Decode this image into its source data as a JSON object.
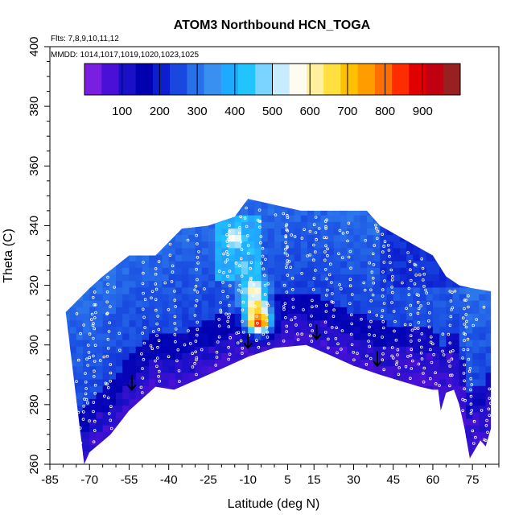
{
  "chart_data": {
    "type": "heatmap",
    "title": "ATOM3 Northbound HCN_TOGA",
    "annotations": [
      "Flts: 7,8,9,10,11,12",
      "MMDD: 1014,1017,1019,1020,1023,1025"
    ],
    "xlabel": "Latitude (deg N)",
    "ylabel": "Theta (C)",
    "xlim": [
      -85,
      85
    ],
    "ylim": [
      260,
      400
    ],
    "x_ticks": [
      -85,
      -70,
      -55,
      -40,
      -25,
      -10,
      5,
      15,
      30,
      45,
      60,
      75
    ],
    "y_ticks": [
      260,
      280,
      300,
      320,
      340,
      360,
      380,
      400
    ],
    "colorbar": {
      "range": [
        0,
        1000
      ],
      "ticks": [
        100,
        200,
        300,
        400,
        500,
        600,
        700,
        800,
        900
      ],
      "colors": [
        "#7a1ee0",
        "#4a10d8",
        "#1a10c8",
        "#0000b0",
        "#0c1ed0",
        "#1848e0",
        "#2870ea",
        "#3a90f0",
        "#1eaaff",
        "#22c4ff",
        "#7ad4ff",
        "#c8ecff",
        "#fffdf0",
        "#fff0a0",
        "#ffe040",
        "#ffc000",
        "#ff9c00",
        "#ff6e00",
        "#ff2c00",
        "#e00000",
        "#c00010",
        "#982020"
      ]
    },
    "lower_boundary": [
      [
        -72,
        260
      ],
      [
        -70,
        264
      ],
      [
        -62,
        270
      ],
      [
        -55,
        278
      ],
      [
        -45,
        286
      ],
      [
        -38,
        285
      ],
      [
        -25,
        290
      ],
      [
        -10,
        296
      ],
      [
        0,
        299
      ],
      [
        12,
        300
      ],
      [
        20,
        297
      ],
      [
        30,
        293
      ],
      [
        40,
        290
      ],
      [
        55,
        286
      ],
      [
        60,
        285
      ],
      [
        62,
        285
      ],
      [
        63,
        278
      ],
      [
        65,
        284
      ],
      [
        68,
        285
      ],
      [
        70,
        280
      ],
      [
        72,
        272
      ],
      [
        74,
        262
      ],
      [
        78,
        268
      ],
      [
        80,
        266
      ],
      [
        82,
        272
      ]
    ],
    "upper_boundary": [
      [
        -79,
        311
      ],
      [
        -70,
        319
      ],
      [
        -65,
        323
      ],
      [
        -55,
        330
      ],
      [
        -45,
        330
      ],
      [
        -35,
        339
      ],
      [
        -25,
        340
      ],
      [
        -15,
        343
      ],
      [
        -10,
        349
      ],
      [
        0,
        347
      ],
      [
        10,
        345
      ],
      [
        20,
        345
      ],
      [
        35,
        345
      ],
      [
        40,
        340
      ],
      [
        50,
        335
      ],
      [
        60,
        330
      ],
      [
        65,
        323
      ],
      [
        70,
        320
      ],
      [
        75,
        319
      ],
      [
        82,
        318
      ]
    ],
    "arrows": [
      [
        -54,
        285
      ],
      [
        -10,
        299
      ],
      [
        16,
        302
      ],
      [
        39,
        293
      ]
    ],
    "hotspots": [
      {
        "lat": -6,
        "theta": 308,
        "value": 920
      },
      {
        "lat": -7,
        "theta": 313,
        "value": 700
      },
      {
        "lat": -8,
        "theta": 319,
        "value": 620
      },
      {
        "lat": -15,
        "theta": 336,
        "value": 600
      },
      {
        "lat": -12,
        "theta": 326,
        "value": 480
      }
    ]
  }
}
